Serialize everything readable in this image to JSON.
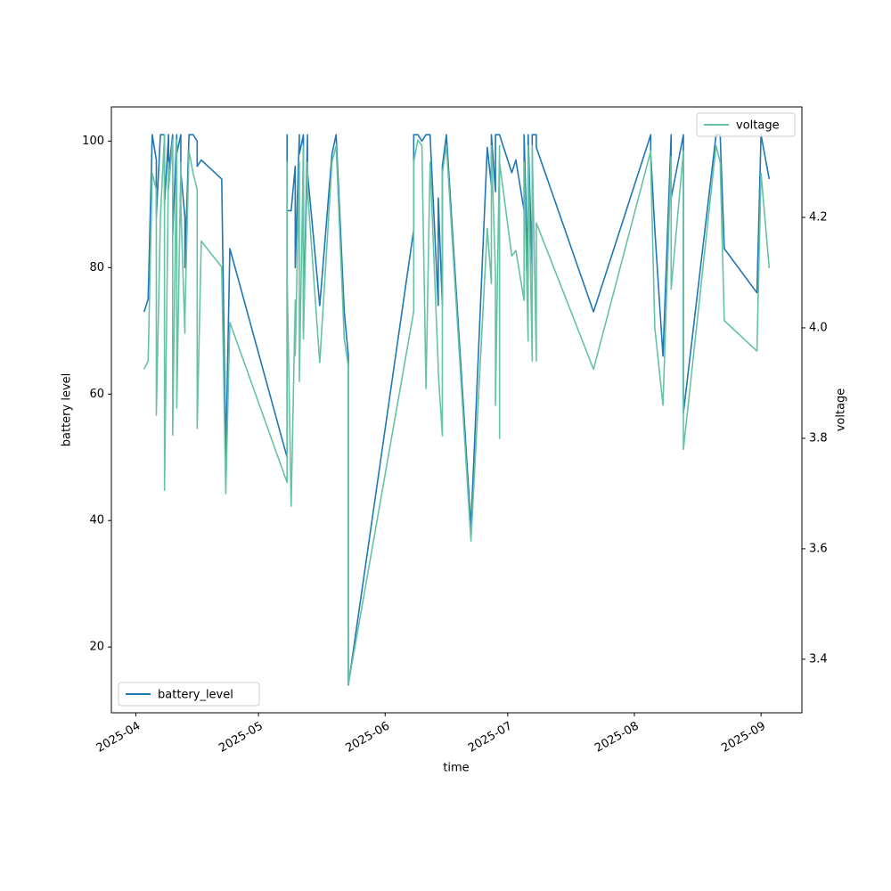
{
  "chart_data": {
    "type": "line",
    "x_label": "time",
    "y_label": "battery level",
    "y2_label": "voltage",
    "x": [
      "2025-04-03",
      "2025-04-04",
      "2025-04-05",
      "2025-04-06",
      "2025-04-06",
      "2025-04-07",
      "2025-04-08",
      "2025-04-08",
      "2025-04-09",
      "2025-04-09",
      "2025-04-10",
      "2025-04-10",
      "2025-04-11",
      "2025-04-11",
      "2025-04-12",
      "2025-04-12",
      "2025-04-13",
      "2025-04-13",
      "2025-04-14",
      "2025-04-15",
      "2025-04-16",
      "2025-04-16",
      "2025-04-17",
      "2025-04-22",
      "2025-04-23",
      "2025-04-24",
      "2025-05-08",
      "2025-05-08",
      "2025-05-08",
      "2025-05-09",
      "2025-05-10",
      "2025-05-10",
      "2025-05-11",
      "2025-05-11",
      "2025-05-12",
      "2025-05-12",
      "2025-05-13",
      "2025-05-13",
      "2025-05-16",
      "2025-05-19",
      "2025-05-20",
      "2025-05-22",
      "2025-05-23",
      "2025-05-23",
      "2025-06-08",
      "2025-06-08",
      "2025-06-09",
      "2025-06-10",
      "2025-06-11",
      "2025-06-12",
      "2025-06-14",
      "2025-06-14",
      "2025-06-15",
      "2025-06-15",
      "2025-06-16",
      "2025-06-22",
      "2025-06-26",
      "2025-06-27",
      "2025-06-27",
      "2025-06-28",
      "2025-06-28",
      "2025-06-29",
      "2025-06-29",
      "2025-06-29",
      "2025-07-02",
      "2025-07-03",
      "2025-07-05",
      "2025-07-05",
      "2025-07-06",
      "2025-07-06",
      "2025-07-07",
      "2025-07-07",
      "2025-07-08",
      "2025-07-08",
      "2025-07-22",
      "2025-08-05",
      "2025-08-05",
      "2025-08-06",
      "2025-08-08",
      "2025-08-10",
      "2025-08-10",
      "2025-08-13",
      "2025-08-13",
      "2025-08-21",
      "2025-08-22",
      "2025-08-23",
      "2025-08-31",
      "2025-09-01",
      "2025-09-03"
    ],
    "series": [
      {
        "name": "battery_level",
        "color": "#1f77b4",
        "legend_loc": "lower left",
        "values": [
          73,
          75,
          101,
          97,
          88,
          101,
          101,
          90,
          101,
          95,
          101,
          85,
          101,
          98,
          101,
          95,
          88,
          80,
          101,
          101,
          100,
          96,
          97,
          94,
          50,
          83,
          50,
          101,
          89,
          89,
          96,
          80,
          101,
          98,
          101,
          70,
          101,
          95,
          74,
          98,
          101,
          73,
          66,
          14,
          86,
          101,
          101,
          100,
          101,
          101,
          74,
          91,
          74,
          96,
          101,
          39,
          99,
          93,
          101,
          92,
          101,
          101,
          101,
          101,
          95,
          97,
          89,
          101,
          78,
          101,
          79,
          101,
          101,
          99,
          73,
          101,
          98,
          86,
          66,
          101,
          91,
          101,
          57,
          101,
          101,
          83,
          76,
          101,
          94
        ]
      },
      {
        "name": "voltage",
        "color": "#66c2a5",
        "axis": "y2",
        "legend_loc": "upper right",
        "values": [
          3.925,
          3.94,
          4.28,
          4.25,
          3.842,
          4.2,
          4.35,
          3.706,
          4.3,
          4.25,
          4.34,
          3.806,
          4.34,
          3.855,
          4.3,
          4.22,
          3.99,
          4.02,
          4.32,
          4.28,
          4.25,
          3.818,
          4.157,
          4.11,
          3.7,
          4.01,
          3.72,
          4.3,
          4.1,
          3.677,
          4.05,
          3.95,
          4.3,
          3.903,
          4.33,
          3.98,
          4.3,
          4.25,
          3.937,
          4.3,
          4.33,
          3.98,
          3.93,
          3.355,
          4.03,
          4.3,
          4.34,
          4.33,
          3.89,
          4.3,
          3.93,
          3.92,
          3.805,
          4.28,
          4.33,
          3.614,
          4.18,
          4.08,
          4.33,
          4.1,
          3.86,
          4.33,
          3.8,
          4.3,
          4.13,
          4.14,
          4.05,
          4.3,
          3.976,
          4.33,
          3.94,
          4.33,
          3.94,
          4.19,
          3.925,
          4.32,
          4.3,
          4.0,
          3.86,
          4.31,
          4.07,
          4.32,
          3.78,
          4.33,
          4.3,
          4.013,
          3.958,
          4.28,
          4.108
        ]
      }
    ],
    "xlim": [
      "2025-03-26",
      "2025-09-11"
    ],
    "xticks": [
      {
        "value": "2025-04-01",
        "label": "2025-04"
      },
      {
        "value": "2025-05-01",
        "label": "2025-05"
      },
      {
        "value": "2025-06-01",
        "label": "2025-06"
      },
      {
        "value": "2025-07-01",
        "label": "2025-07"
      },
      {
        "value": "2025-08-01",
        "label": "2025-08"
      },
      {
        "value": "2025-09-01",
        "label": "2025-09"
      }
    ],
    "ylim": [
      9.6,
      105.4
    ],
    "yticks": [
      20,
      40,
      60,
      80,
      100
    ],
    "y2lim": [
      3.303,
      4.4
    ],
    "y2ticks": [
      3.4,
      3.6,
      3.8,
      {
        "value": 4,
        "label": "4.0"
      },
      4.2
    ],
    "grid": false
  }
}
